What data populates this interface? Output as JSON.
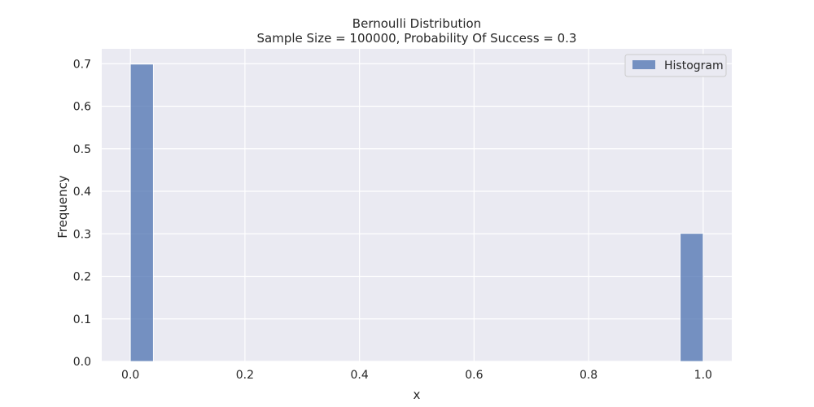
{
  "chart_data": {
    "type": "bar",
    "title": "Bernoulli Distribution",
    "subtitle": "Sample Size = 100000, Probability Of Success = 0.3",
    "xlabel": "x",
    "ylabel": "Frequency",
    "xlim": [
      -0.05,
      1.05
    ],
    "ylim": [
      0,
      0.735
    ],
    "xticks": [
      0.0,
      0.2,
      0.4,
      0.6,
      0.8,
      1.0
    ],
    "xtick_labels": [
      "0.0",
      "0.2",
      "0.4",
      "0.6",
      "0.8",
      "1.0"
    ],
    "yticks": [
      0.0,
      0.1,
      0.2,
      0.3,
      0.4,
      0.5,
      0.6,
      0.7
    ],
    "ytick_labels": [
      "0.0",
      "0.1",
      "0.2",
      "0.3",
      "0.4",
      "0.5",
      "0.6",
      "0.7"
    ],
    "grid": true,
    "legend_position": "top-right",
    "series": [
      {
        "name": "Histogram",
        "color": "#4c72b0",
        "bins": [
          {
            "x_start": 0.0,
            "x_end": 0.04,
            "value": 0.699
          },
          {
            "x_start": 0.96,
            "x_end": 1.0,
            "value": 0.301
          }
        ]
      }
    ],
    "colors": {
      "plot_background": "#eaeaf2",
      "grid": "#ffffff",
      "text": "#262626"
    }
  }
}
